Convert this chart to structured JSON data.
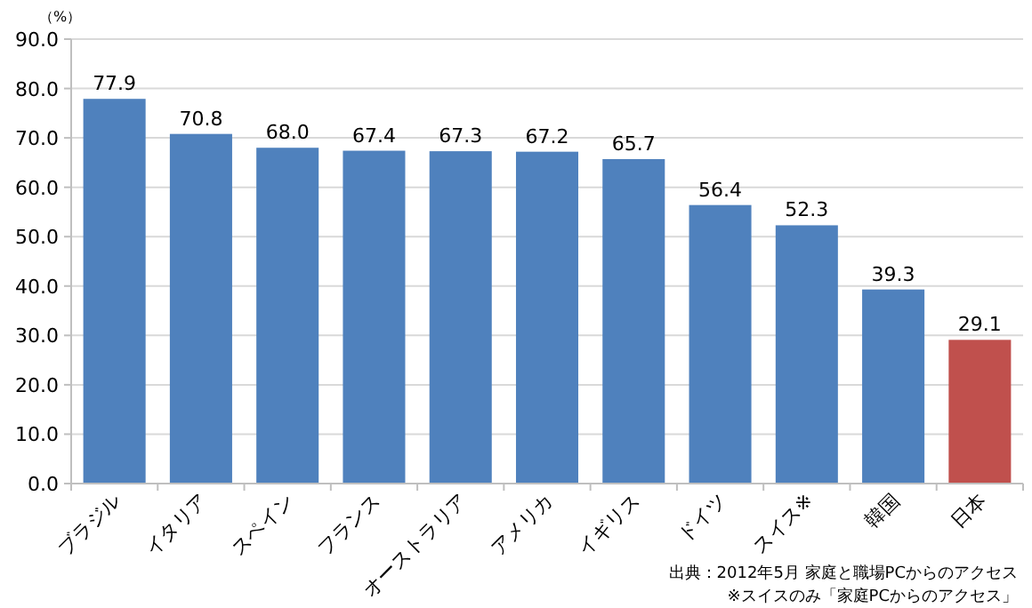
{
  "chart_data": {
    "type": "bar",
    "ylabel": "（%）",
    "categories": [
      "ブラジル",
      "イタリア",
      "スペイン",
      "フランス",
      "オーストラリア",
      "アメリカ",
      "イギリス",
      "ドイツ",
      "スイス※",
      "韓国",
      "日本"
    ],
    "values": [
      77.9,
      70.8,
      68.0,
      67.4,
      67.3,
      67.2,
      65.7,
      56.4,
      52.3,
      39.3,
      29.1
    ],
    "value_labels": [
      "77.9",
      "70.8",
      "68.0",
      "67.4",
      "67.3",
      "67.2",
      "65.7",
      "56.4",
      "52.3",
      "39.3",
      "29.1"
    ],
    "colors": [
      "#4f81bd",
      "#4f81bd",
      "#4f81bd",
      "#4f81bd",
      "#4f81bd",
      "#4f81bd",
      "#4f81bd",
      "#4f81bd",
      "#4f81bd",
      "#4f81bd",
      "#c0504d"
    ],
    "ylim": [
      0,
      90
    ],
    "yticks": [
      {
        "value": 0,
        "label": "0.0"
      },
      {
        "value": 10,
        "label": "10.0"
      },
      {
        "value": 20,
        "label": "20.0"
      },
      {
        "value": 30,
        "label": "30.0"
      },
      {
        "value": 40,
        "label": "40.0"
      },
      {
        "value": 50,
        "label": "50.0"
      },
      {
        "value": 60,
        "label": "60.0"
      },
      {
        "value": 70,
        "label": "70.0"
      },
      {
        "value": 80,
        "label": "80.0"
      },
      {
        "value": 90,
        "label": "90.0"
      }
    ],
    "grid": "y",
    "annotations": [
      "出典：2012年5月 家庭と職場PCからのアクセス",
      "※スイスのみ「家庭PCからのアクセス」"
    ]
  }
}
